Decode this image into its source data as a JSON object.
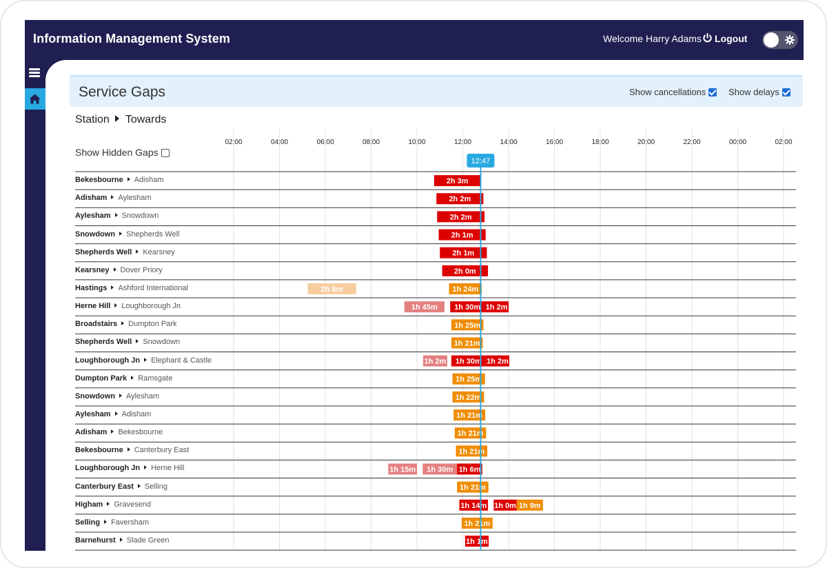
{
  "app": {
    "title": "Information Management System",
    "welcome": "Welcome Harry Adams",
    "logout": "Logout"
  },
  "icons": {
    "menu": "hamburger-icon",
    "home": "home-icon",
    "power": "power-icon",
    "theme": "gear-icon"
  },
  "colors": {
    "navy": "#1f1f52",
    "accent": "#29a9e1",
    "red": "#dd0000",
    "orange": "#f08c00",
    "faded_red": "#e58080",
    "faded_orange": "#f7cda0",
    "now_line": "#29a9e1"
  },
  "page": {
    "title": "Service Gaps",
    "show_cancellations": "Show cancellations",
    "show_cancellations_checked": true,
    "show_delays": "Show delays",
    "show_delays_checked": true,
    "station_label": "Station",
    "towards_label": "Towards",
    "show_hidden_gaps": "Show Hidden Gaps",
    "show_hidden_gaps_checked": false
  },
  "chart_data": {
    "type": "timeline",
    "time_ticks": [
      "02:00",
      "04:00",
      "06:00",
      "08:00",
      "10:00",
      "12:00",
      "14:00",
      "16:00",
      "18:00",
      "20:00",
      "22:00",
      "00:00",
      "02:00"
    ],
    "x_range_hours": [
      2,
      26
    ],
    "now": {
      "label": "12:47",
      "hour": 12.78
    },
    "rows": [
      {
        "station": "Bekesbourne",
        "towards": "Adisham",
        "gaps": [
          {
            "label": "2h 3m",
            "start": 10.75,
            "end": 12.78,
            "color": "red"
          }
        ]
      },
      {
        "station": "Adisham",
        "towards": "Aylesham",
        "gaps": [
          {
            "label": "2h 2m",
            "start": 10.85,
            "end": 12.9,
            "color": "red"
          }
        ]
      },
      {
        "station": "Aylesham",
        "towards": "Snowdown",
        "gaps": [
          {
            "label": "2h 2m",
            "start": 10.88,
            "end": 12.95,
            "color": "red"
          }
        ]
      },
      {
        "station": "Snowdown",
        "towards": "Shepherds Well",
        "gaps": [
          {
            "label": "2h 1m",
            "start": 10.95,
            "end": 13.0,
            "color": "red"
          }
        ]
      },
      {
        "station": "Shepherds Well",
        "towards": "Kearsney",
        "gaps": [
          {
            "label": "2h 1m",
            "start": 11.0,
            "end": 13.05,
            "color": "red"
          }
        ]
      },
      {
        "station": "Kearsney",
        "towards": "Dover Priory",
        "gaps": [
          {
            "label": "2h 0m",
            "start": 11.1,
            "end": 13.1,
            "color": "red"
          }
        ]
      },
      {
        "station": "Hastings",
        "towards": "Ashford International",
        "gaps": [
          {
            "label": "2h 6m",
            "start": 5.23,
            "end": 7.35,
            "color": "faded_orange"
          },
          {
            "label": "1h 24m",
            "start": 11.4,
            "end": 12.83,
            "color": "orange"
          }
        ]
      },
      {
        "station": "Herne Hill",
        "towards": "Loughborough Jn",
        "gaps": [
          {
            "label": "1h 45m",
            "start": 9.45,
            "end": 11.2,
            "color": "faded_red"
          },
          {
            "label": "1h 30m",
            "start": 11.45,
            "end": 12.95,
            "color": "red"
          },
          {
            "label": "1h 2m",
            "start": 12.95,
            "end": 14.0,
            "color": "red"
          }
        ]
      },
      {
        "station": "Broadstairs",
        "towards": "Dumpton Park",
        "gaps": [
          {
            "label": "1h 25m",
            "start": 11.5,
            "end": 12.9,
            "color": "orange"
          }
        ]
      },
      {
        "station": "Shepherds Well",
        "towards": "Snowdown",
        "gaps": [
          {
            "label": "1h 21m",
            "start": 11.5,
            "end": 12.87,
            "color": "orange"
          }
        ]
      },
      {
        "station": "Loughborough Jn",
        "towards": "Elephant & Castle",
        "gaps": [
          {
            "label": "1h 2m",
            "start": 10.27,
            "end": 11.32,
            "color": "faded_red"
          },
          {
            "label": "1h 30m",
            "start": 11.5,
            "end": 13.0,
            "color": "red"
          },
          {
            "label": "1h 2m",
            "start": 13.0,
            "end": 14.03,
            "color": "red"
          }
        ]
      },
      {
        "station": "Dumpton Park",
        "towards": "Ramsgate",
        "gaps": [
          {
            "label": "1h 25m",
            "start": 11.55,
            "end": 12.97,
            "color": "orange"
          }
        ]
      },
      {
        "station": "Snowdown",
        "towards": "Aylesham",
        "gaps": [
          {
            "label": "1h 22m",
            "start": 11.55,
            "end": 12.93,
            "color": "orange"
          }
        ]
      },
      {
        "station": "Aylesham",
        "towards": "Adisham",
        "gaps": [
          {
            "label": "1h 21m",
            "start": 11.6,
            "end": 12.98,
            "color": "orange"
          }
        ]
      },
      {
        "station": "Adisham",
        "towards": "Bekesbourne",
        "gaps": [
          {
            "label": "1h 21m",
            "start": 11.65,
            "end": 13.02,
            "color": "orange"
          }
        ]
      },
      {
        "station": "Bekesbourne",
        "towards": "Canterbury East",
        "gaps": [
          {
            "label": "1h 21m",
            "start": 11.7,
            "end": 13.07,
            "color": "orange"
          }
        ]
      },
      {
        "station": "Loughborough Jn",
        "towards": "Herne Hill",
        "gaps": [
          {
            "label": "1h 15m",
            "start": 8.75,
            "end": 10.0,
            "color": "faded_red"
          },
          {
            "label": "1h 30m",
            "start": 10.25,
            "end": 11.75,
            "color": "faded_red"
          },
          {
            "label": "1h 6m",
            "start": 11.75,
            "end": 12.85,
            "color": "red"
          }
        ]
      },
      {
        "station": "Canterbury East",
        "towards": "Selling",
        "gaps": [
          {
            "label": "1h 21m",
            "start": 11.75,
            "end": 13.12,
            "color": "orange"
          }
        ]
      },
      {
        "station": "Higham",
        "towards": "Gravesend",
        "gaps": [
          {
            "label": "1h 14m",
            "start": 11.85,
            "end": 13.1,
            "color": "red"
          },
          {
            "label": "1h 0m",
            "start": 13.35,
            "end": 14.35,
            "color": "red"
          },
          {
            "label": "1h 9m",
            "start": 14.35,
            "end": 15.5,
            "color": "orange"
          }
        ]
      },
      {
        "station": "Selling",
        "towards": "Faversham",
        "gaps": [
          {
            "label": "1h 21m",
            "start": 11.95,
            "end": 13.3,
            "color": "orange"
          }
        ]
      },
      {
        "station": "Barnehurst",
        "towards": "Slade Green",
        "gaps": [
          {
            "label": "1h 1m",
            "start": 12.1,
            "end": 13.13,
            "color": "red"
          }
        ]
      }
    ]
  }
}
